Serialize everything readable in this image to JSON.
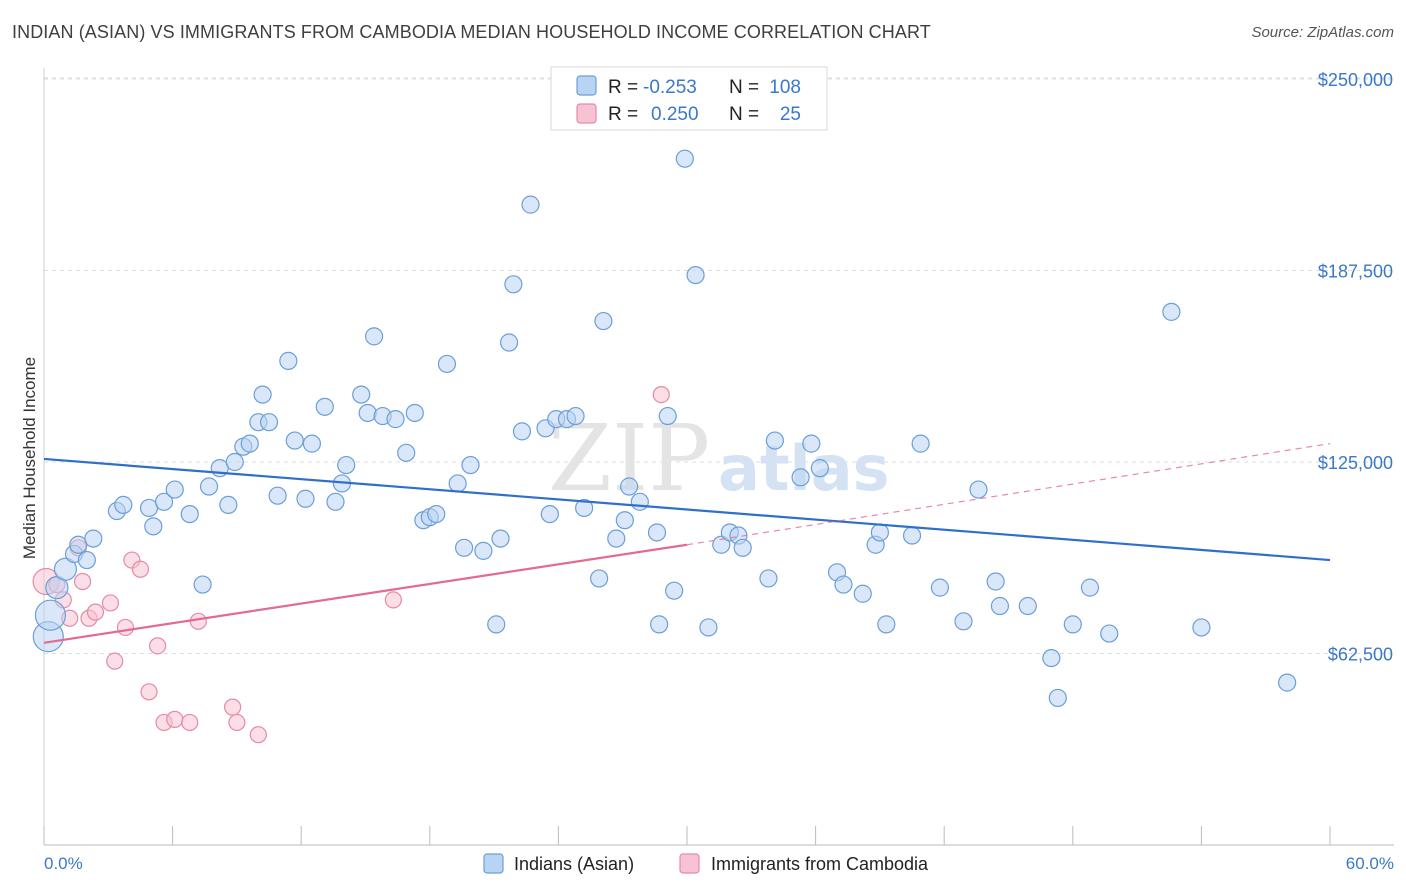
{
  "header": {
    "title": "INDIAN (ASIAN) VS IMMIGRANTS FROM CAMBODIA MEDIAN HOUSEHOLD INCOME CORRELATION CHART",
    "source": "Source: ZipAtlas.com"
  },
  "watermark": {
    "part1": "ZIP",
    "part2": "atlas"
  },
  "colors": {
    "blue_fill": "#b9d3f3",
    "blue_stroke": "#6b9fd8",
    "blue_line": "#2f6fcb",
    "pink_fill": "#f7c3d2",
    "pink_stroke": "#e58aa7",
    "pink_line": "#e26a93",
    "grid": "#dddddd",
    "tick_text": "#3a78c9"
  },
  "chart_data": {
    "type": "scatter",
    "title": "INDIAN (ASIAN) VS IMMIGRANTS FROM CAMBODIA MEDIAN HOUSEHOLD INCOME CORRELATION CHART",
    "xlabel": "",
    "ylabel": "Median Household Income",
    "xlim": [
      0,
      60
    ],
    "ylim": [
      0,
      250000
    ],
    "x_tick_labels": {
      "min": "0.0%",
      "max": "60.0%"
    },
    "y_ticks": [
      {
        "value": 62500,
        "label": "$62,500"
      },
      {
        "value": 125000,
        "label": "$125,000"
      },
      {
        "value": 187500,
        "label": "$187,500"
      },
      {
        "value": 250000,
        "label": "$250,000"
      }
    ],
    "grid": true,
    "legend_position": "top-center",
    "legend": [
      {
        "r_label": "R =",
        "r_value": "-0.253",
        "n_label": "N =",
        "n_value": "108"
      },
      {
        "r_label": "R =",
        "r_value": "0.250",
        "n_label": "N =",
        "n_value": "25"
      }
    ],
    "series": [
      {
        "name": "Indians (Asian)",
        "color": "#b9d3f3",
        "trend": {
          "x": [
            0,
            60
          ],
          "y": [
            126000,
            93000
          ],
          "dashed": false
        },
        "points": [
          [
            0.2,
            68000
          ],
          [
            0.3,
            75000
          ],
          [
            0.6,
            84000
          ],
          [
            1.0,
            90000
          ],
          [
            1.4,
            95000
          ],
          [
            1.6,
            98000
          ],
          [
            2.0,
            93000
          ],
          [
            2.3,
            100000
          ],
          [
            3.4,
            109000
          ],
          [
            3.7,
            111000
          ],
          [
            4.9,
            110000
          ],
          [
            5.1,
            104000
          ],
          [
            5.6,
            112000
          ],
          [
            6.1,
            116000
          ],
          [
            6.8,
            108000
          ],
          [
            7.4,
            85000
          ],
          [
            7.7,
            117000
          ],
          [
            8.2,
            123000
          ],
          [
            8.6,
            111000
          ],
          [
            8.9,
            125000
          ],
          [
            9.3,
            130000
          ],
          [
            9.6,
            131000
          ],
          [
            10.0,
            138000
          ],
          [
            10.2,
            147000
          ],
          [
            10.5,
            138000
          ],
          [
            10.9,
            114000
          ],
          [
            11.4,
            158000
          ],
          [
            11.7,
            132000
          ],
          [
            12.2,
            113000
          ],
          [
            12.5,
            131000
          ],
          [
            13.1,
            143000
          ],
          [
            13.6,
            112000
          ],
          [
            13.9,
            118000
          ],
          [
            14.1,
            124000
          ],
          [
            14.8,
            147000
          ],
          [
            15.1,
            141000
          ],
          [
            15.4,
            166000
          ],
          [
            15.8,
            140000
          ],
          [
            16.4,
            139000
          ],
          [
            16.9,
            128000
          ],
          [
            17.3,
            141000
          ],
          [
            17.7,
            106000
          ],
          [
            18.0,
            107000
          ],
          [
            18.3,
            108000
          ],
          [
            18.8,
            157000
          ],
          [
            19.3,
            118000
          ],
          [
            19.6,
            97000
          ],
          [
            19.9,
            124000
          ],
          [
            20.5,
            96000
          ],
          [
            21.1,
            72000
          ],
          [
            21.3,
            100000
          ],
          [
            21.7,
            164000
          ],
          [
            21.9,
            183000
          ],
          [
            22.3,
            135000
          ],
          [
            22.7,
            209000
          ],
          [
            23.4,
            136000
          ],
          [
            23.6,
            108000
          ],
          [
            23.9,
            139000
          ],
          [
            24.4,
            139000
          ],
          [
            24.8,
            140000
          ],
          [
            25.2,
            110000
          ],
          [
            25.9,
            87000
          ],
          [
            26.1,
            171000
          ],
          [
            26.7,
            100000
          ],
          [
            27.1,
            106000
          ],
          [
            27.3,
            117000
          ],
          [
            27.8,
            112000
          ],
          [
            28.6,
            102000
          ],
          [
            28.7,
            72000
          ],
          [
            29.1,
            140000
          ],
          [
            29.4,
            83000
          ],
          [
            29.9,
            224000
          ],
          [
            30.4,
            186000
          ],
          [
            31.0,
            71000
          ],
          [
            31.6,
            98000
          ],
          [
            32.0,
            102000
          ],
          [
            32.4,
            101000
          ],
          [
            32.6,
            97000
          ],
          [
            33.8,
            87000
          ],
          [
            34.1,
            132000
          ],
          [
            35.3,
            120000
          ],
          [
            35.8,
            131000
          ],
          [
            36.2,
            123000
          ],
          [
            37.0,
            89000
          ],
          [
            37.3,
            85000
          ],
          [
            38.2,
            82000
          ],
          [
            38.8,
            98000
          ],
          [
            39.0,
            102000
          ],
          [
            39.3,
            72000
          ],
          [
            40.5,
            101000
          ],
          [
            40.9,
            131000
          ],
          [
            41.8,
            84000
          ],
          [
            42.9,
            73000
          ],
          [
            43.6,
            116000
          ],
          [
            44.4,
            86000
          ],
          [
            44.6,
            78000
          ],
          [
            45.9,
            78000
          ],
          [
            47.0,
            61000
          ],
          [
            47.3,
            48000
          ],
          [
            48.0,
            72000
          ],
          [
            48.8,
            84000
          ],
          [
            49.7,
            69000
          ],
          [
            52.6,
            174000
          ],
          [
            54.0,
            71000
          ],
          [
            58.0,
            53000
          ]
        ]
      },
      {
        "name": "Immigrants from Cambodia",
        "color": "#f7c3d2",
        "trend": {
          "x": [
            0,
            30
          ],
          "y": [
            66000,
            98000
          ],
          "dashed": false,
          "extension": {
            "x": [
              30,
              60
            ],
            "y": [
              98000,
              131000
            ],
            "dashed": true
          }
        },
        "points": [
          [
            0.1,
            86000
          ],
          [
            0.6,
            85000
          ],
          [
            0.9,
            80000
          ],
          [
            1.2,
            74000
          ],
          [
            1.6,
            97000
          ],
          [
            1.8,
            86000
          ],
          [
            2.1,
            74000
          ],
          [
            2.4,
            76000
          ],
          [
            3.1,
            79000
          ],
          [
            3.3,
            60000
          ],
          [
            3.8,
            71000
          ],
          [
            4.1,
            93000
          ],
          [
            4.5,
            90000
          ],
          [
            4.9,
            50000
          ],
          [
            5.3,
            65000
          ],
          [
            5.6,
            40000
          ],
          [
            6.1,
            41000
          ],
          [
            6.8,
            40000
          ],
          [
            7.2,
            73000
          ],
          [
            8.8,
            45000
          ],
          [
            9.0,
            40000
          ],
          [
            10.0,
            36000
          ],
          [
            16.3,
            80000
          ],
          [
            28.8,
            147000
          ]
        ]
      }
    ]
  },
  "bottom_legend": [
    {
      "label": "Indians (Asian)"
    },
    {
      "label": "Immigrants from Cambodia"
    }
  ]
}
